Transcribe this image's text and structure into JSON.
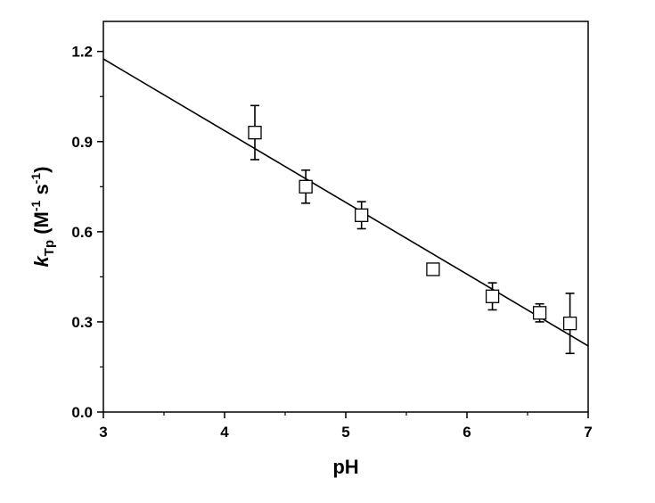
{
  "chart_data": {
    "type": "scatter",
    "title": "",
    "xlabel": "pH",
    "ylabel": {
      "k": "k",
      "sub": "Tp",
      "open": " (M",
      "sup1": "-1",
      "mid": " s",
      "sup2": "-1",
      "close": ")"
    },
    "xlim": [
      3,
      7
    ],
    "ylim": [
      0,
      1.3
    ],
    "xticks": [
      3,
      4,
      5,
      6,
      7
    ],
    "xtick_labels": [
      "3",
      "4",
      "5",
      "6",
      "7"
    ],
    "yticks": [
      0,
      0.3,
      0.6,
      0.9,
      1.2
    ],
    "ytick_labels": [
      "0.0",
      "0.3",
      "0.6",
      "0.9",
      "1.2"
    ],
    "grid": false,
    "legend": "none",
    "marker": "open-square",
    "colors": {
      "axis": "#000000",
      "marker_fill": "#ffffff",
      "line": "#000000"
    },
    "series": [
      {
        "x": [
          4.25,
          4.67,
          5.13,
          5.72,
          6.21,
          6.6,
          6.85
        ],
        "y": [
          0.93,
          0.75,
          0.655,
          0.475,
          0.385,
          0.33,
          0.295
        ],
        "yerr": [
          0.09,
          0.055,
          0.045,
          0.015,
          0.045,
          0.03,
          0.1
        ]
      }
    ],
    "fit_line": {
      "type": "linear",
      "x": [
        3,
        7
      ],
      "y": [
        1.175,
        0.22
      ]
    }
  }
}
